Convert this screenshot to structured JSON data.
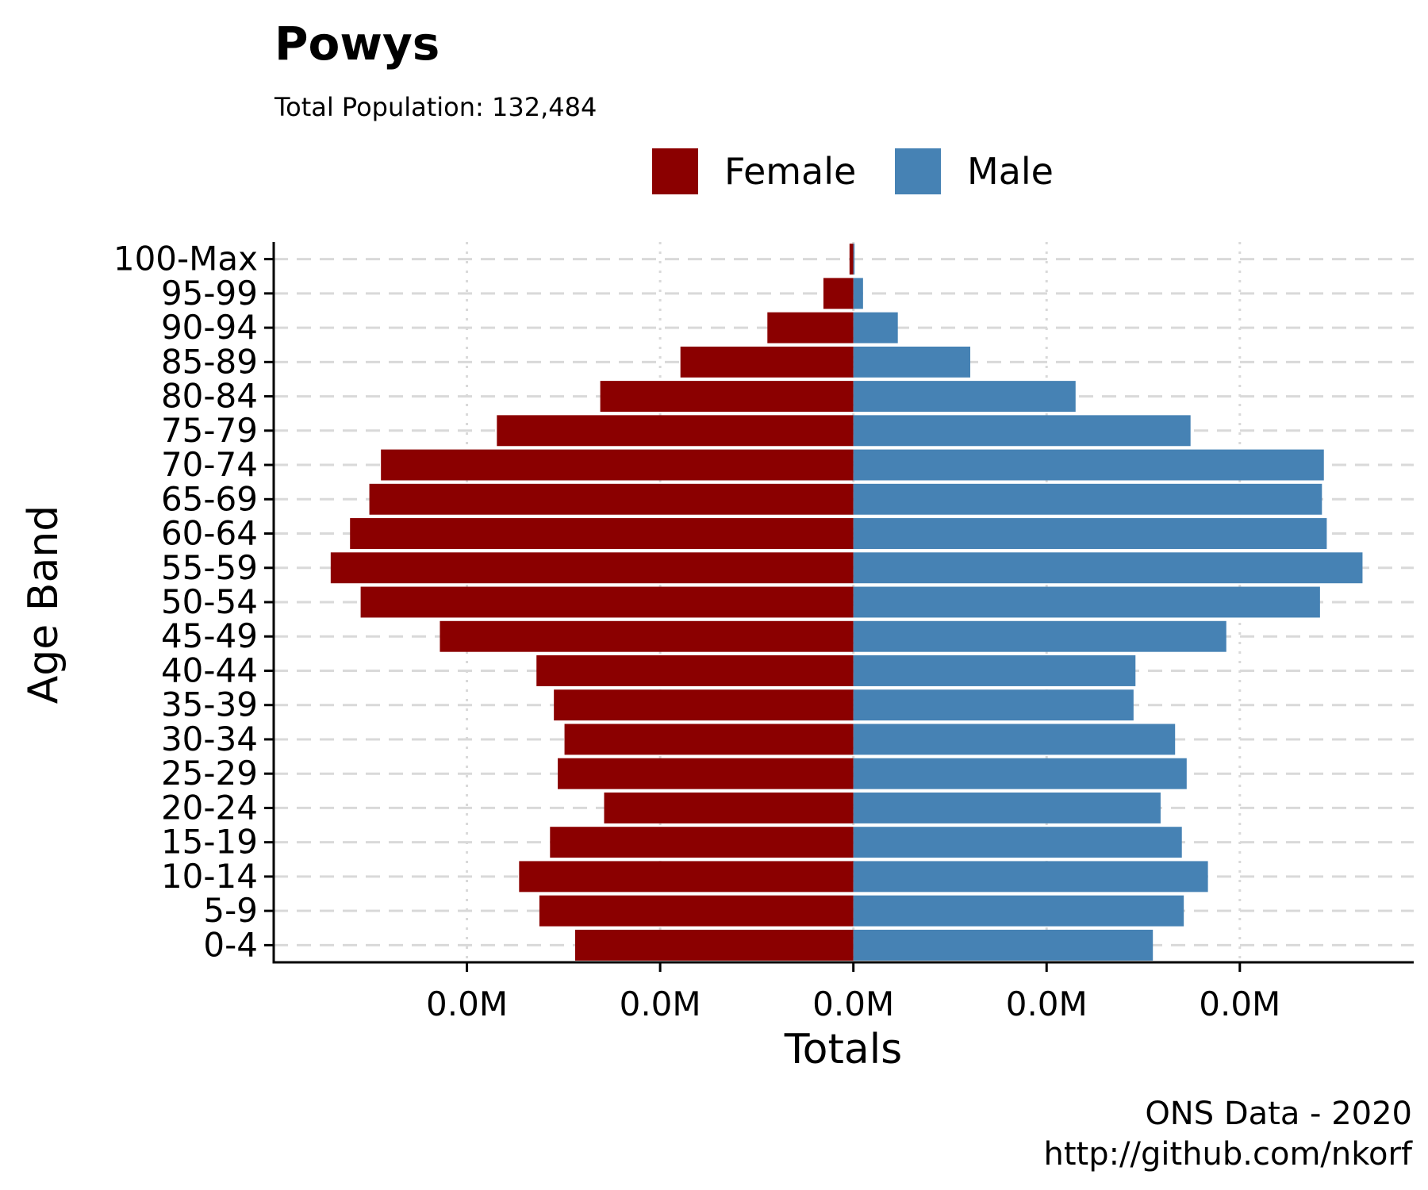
{
  "chart_data": {
    "type": "bar",
    "orientation": "horizontal",
    "layout": "population-pyramid",
    "title": "Powys",
    "subtitle": "Total Population:  132,484",
    "xlabel": "Totals",
    "ylabel": "Age Band",
    "caption_lines": [
      "ONS Data - 2020",
      "http://github.com/nkorf"
    ],
    "legend_placement": "top",
    "categories": [
      "0-4",
      "5-9",
      "10-14",
      "15-19",
      "20-24",
      "25-29",
      "30-34",
      "35-39",
      "40-44",
      "45-49",
      "50-54",
      "55-59",
      "60-64",
      "65-69",
      "70-74",
      "75-79",
      "80-84",
      "85-89",
      "90-94",
      "95-99",
      "100-Max"
    ],
    "series": [
      {
        "name": "Female",
        "color": "#8B0000",
        "values": [
          -2880,
          -3250,
          -3460,
          -3140,
          -2580,
          -3060,
          -2990,
          -3100,
          -3280,
          -4280,
          -5100,
          -5410,
          -5210,
          -5010,
          -4890,
          -3690,
          -2620,
          -1790,
          -890,
          -310,
          -40
        ]
      },
      {
        "name": "Male",
        "color": "#4682B4",
        "values": [
          3100,
          3420,
          3670,
          3400,
          3180,
          3450,
          3330,
          2900,
          2920,
          3860,
          4830,
          5270,
          4900,
          4850,
          4870,
          3490,
          2300,
          1210,
          460,
          100,
          10
        ]
      }
    ],
    "xlim": [
      -6000,
      5800
    ],
    "x_tick_values": [
      -4000,
      -2000,
      0,
      2000,
      4000
    ],
    "x_tick_labels": [
      "0.0M",
      "0.0M",
      "0.0M",
      "0.0M",
      "0.0M"
    ],
    "grid": {
      "horizontal": "dashed",
      "vertical": "dotted"
    },
    "colors": {
      "female": "#8B0000",
      "male": "#4682B4",
      "grid": "#d9d9d9",
      "axis": "#000000"
    }
  }
}
